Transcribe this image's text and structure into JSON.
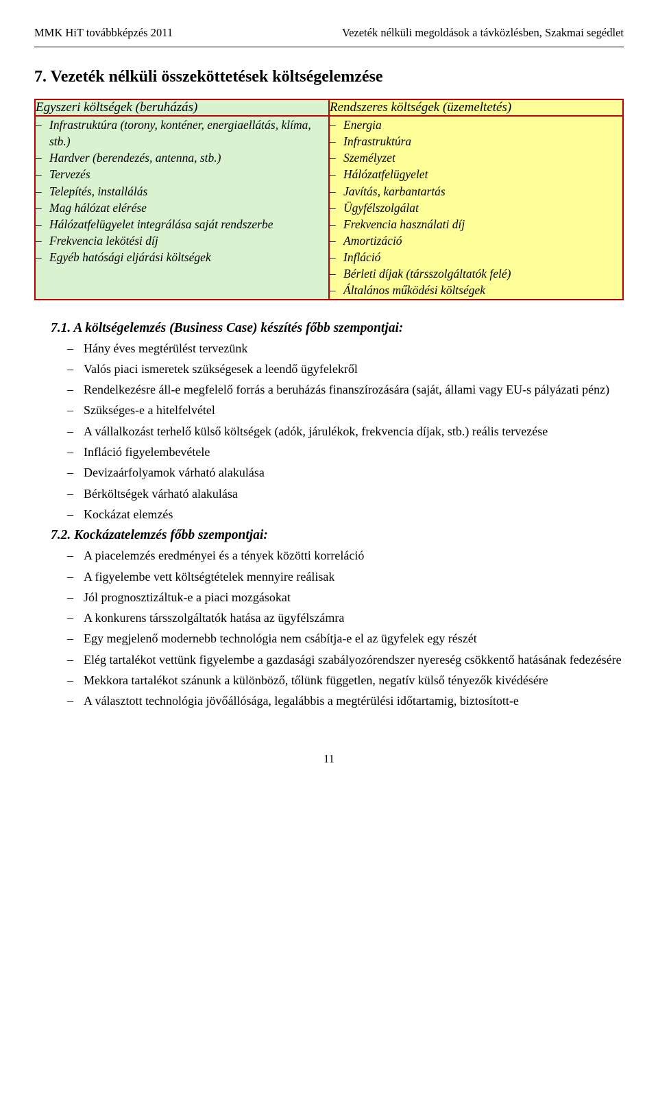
{
  "header": {
    "left": "MMK HiT továbbképzés 2011",
    "right": "Vezeték nélküli megoldások a távközlésben, Szakmai segédlet"
  },
  "title": "7. Vezeték nélküli összeköttetések költségelemzése",
  "table": {
    "leftHead": "Egyszeri költségek (beruházás)",
    "rightHead": "Rendszeres költségek (üzemeltetés)",
    "leftItems": [
      "Infrastruktúra (torony, konténer, energiaellátás, klíma, stb.)",
      "Hardver (berendezés, antenna, stb.)",
      "Tervezés",
      "Telepítés, installálás",
      "Mag hálózat elérése",
      "Hálózatfelügyelet integrálása saját rendszerbe",
      "Frekvencia lekötési díj",
      "Egyéb hatósági eljárási költségek"
    ],
    "rightItems": [
      "Energia",
      "Infrastruktúra",
      "Személyzet",
      "Hálózatfelügyelet",
      "Javítás, karbantartás",
      "Ügyfélszolgálat",
      "Frekvencia használati díj",
      "Amortizáció",
      "Infláció",
      "Bérleti díjak (társszolgáltatók felé)",
      "Általános működési költségek"
    ]
  },
  "section71": {
    "heading": "7.1. A költségelemzés (Business Case) készítés főbb szempontjai:",
    "items": [
      "Hány éves megtérülést tervezünk",
      "Valós piaci ismeretek szükségesek a leendő ügyfelekről",
      "Rendelkezésre áll-e megfelelő forrás a beruházás finanszírozására (saját, állami vagy EU-s pályázati pénz)",
      "Szükséges-e a hitelfelvétel",
      "A vállalkozást terhelő külső költségek (adók, járulékok, frekvencia díjak, stb.) reális tervezése",
      "Infláció figyelembevétele",
      "Devizaárfolyamok várható alakulása",
      "Bérköltségek várható alakulása",
      "Kockázat elemzés"
    ]
  },
  "section72": {
    "heading": "7.2. Kockázatelemzés főbb szempontjai:",
    "items": [
      "A piacelemzés eredményei és a tények közötti korreláció",
      "A figyelembe vett költségtételek mennyire reálisak",
      "Jól prognosztizáltuk-e a piaci mozgásokat",
      "A konkurens társszolgáltatók hatása az ügyfélszámra",
      "Egy megjelenő modernebb technológia nem csábítja-e el az ügyfelek egy részét",
      "Elég tartalékot vettünk figyelembe a gazdasági szabályozórendszer nyereség csökkentő hatásának fedezésére",
      "Mekkora tartalékot szánunk a különböző, tőlünk független, negatív külső tényezők kivédésére",
      "A választott technológia jövőállósága, legalábbis a megtérülési időtartamig, biztosított-e"
    ]
  },
  "pageNumber": "11"
}
